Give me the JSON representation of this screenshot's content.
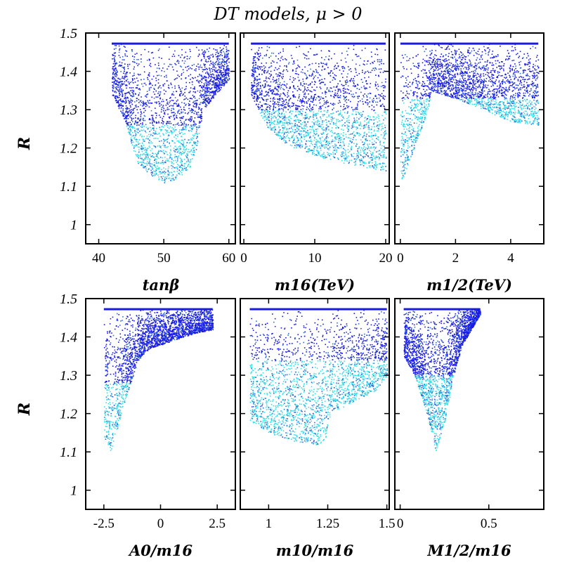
{
  "figure_title": "DT models, μ > 0",
  "colors": {
    "dense": "#1a1ae6",
    "mid": "#2f6fe0",
    "low": "#38e0e8",
    "sparse": "#4040b8"
  },
  "chart_data": [
    {
      "type": "scatter",
      "panel": "tanbeta",
      "xlabel": "tanβ",
      "ylabel": "R",
      "xlim": [
        38,
        61
      ],
      "ylim": [
        0.95,
        1.5
      ],
      "xticks": [
        "40",
        "50",
        "60"
      ],
      "xtick_values": [
        40,
        50,
        60
      ],
      "yticks": [
        "1.5",
        "1.4",
        "1.3",
        "1.2",
        "1.1",
        "1"
      ],
      "ytick_values": [
        1.5,
        1.4,
        1.3,
        1.2,
        1.1,
        1.0
      ],
      "r_max": 1.475,
      "envelope": {
        "x": [
          42,
          44,
          45,
          46,
          48,
          50,
          52,
          54,
          55,
          56,
          58,
          60
        ],
        "r_min": [
          1.34,
          1.27,
          1.21,
          1.16,
          1.13,
          1.11,
          1.12,
          1.15,
          1.2,
          1.3,
          1.34,
          1.38
        ]
      },
      "dense_threshold": 1.26
    },
    {
      "type": "scatter",
      "panel": "m16",
      "xlabel": "m16(TeV)",
      "ylabel": "",
      "xlim": [
        -0.5,
        20.5
      ],
      "ylim": [
        0.95,
        1.5
      ],
      "xticks": [
        "0",
        "10",
        "20"
      ],
      "xtick_values": [
        0,
        10,
        20
      ],
      "yticks": [],
      "ytick_values": [],
      "r_max": 1.475,
      "envelope": {
        "x": [
          1,
          3,
          6,
          10,
          14,
          17,
          20
        ],
        "r_min": [
          1.34,
          1.26,
          1.21,
          1.18,
          1.16,
          1.15,
          1.14
        ]
      },
      "dense_threshold": 1.3
    },
    {
      "type": "scatter",
      "panel": "m12",
      "xlabel": "m1/2(TeV)",
      "ylabel": "",
      "xlim": [
        -0.2,
        5.2
      ],
      "ylim": [
        0.95,
        1.5
      ],
      "xticks": [
        "0",
        "2",
        "4"
      ],
      "xtick_values": [
        0,
        2,
        4
      ],
      "yticks": [],
      "ytick_values": [],
      "r_max": 1.475,
      "envelope": {
        "x": [
          0,
          0.3,
          0.7,
          1.0,
          1.1,
          2,
          3,
          4,
          5
        ],
        "r_min": [
          1.1,
          1.16,
          1.24,
          1.3,
          1.35,
          1.33,
          1.3,
          1.27,
          1.26
        ]
      },
      "dense_threshold": 1.33
    },
    {
      "type": "scatter",
      "panel": "a0",
      "xlabel": "A0/m16",
      "ylabel": "R",
      "xlim": [
        -3.3,
        3.3
      ],
      "ylim": [
        0.95,
        1.5
      ],
      "xticks": [
        "-2.5",
        "0",
        "2.5"
      ],
      "xtick_values": [
        -2.5,
        0,
        2.5
      ],
      "yticks": [
        "1.5",
        "1.4",
        "1.3",
        "1.2",
        "1.1",
        "1"
      ],
      "ytick_values": [
        1.5,
        1.4,
        1.3,
        1.2,
        1.1,
        1.0
      ],
      "r_max": 1.475,
      "envelope": {
        "x": [
          -2.5,
          -2.2,
          -1.6,
          -1.0,
          -0.5,
          0.5,
          1.5,
          2.3
        ],
        "r_min": [
          1.14,
          1.1,
          1.23,
          1.34,
          1.37,
          1.39,
          1.41,
          1.42
        ]
      },
      "dense_threshold": 1.28
    },
    {
      "type": "scatter",
      "panel": "m10",
      "xlabel": "m10/m16",
      "ylabel": "",
      "xlim": [
        0.88,
        1.51
      ],
      "ylim": [
        0.95,
        1.5
      ],
      "xticks": [
        "1",
        "1.25",
        "1.5"
      ],
      "xtick_values": [
        1,
        1.25,
        1.5
      ],
      "yticks": [],
      "ytick_values": [],
      "r_max": 1.475,
      "envelope": {
        "x": [
          0.92,
          1.0,
          1.1,
          1.2,
          1.24,
          1.26,
          1.35,
          1.45,
          1.5
        ],
        "r_min": [
          1.18,
          1.15,
          1.13,
          1.12,
          1.12,
          1.2,
          1.23,
          1.26,
          1.3
        ]
      },
      "dense_threshold": 1.34
    },
    {
      "type": "scatter",
      "panel": "m12ratio",
      "xlabel": "M1/2/m16",
      "ylabel": "",
      "xlim": [
        -0.03,
        0.81
      ],
      "ylim": [
        0.95,
        1.5
      ],
      "xticks": [
        "0",
        "0.5"
      ],
      "xtick_values": [
        0,
        0.5
      ],
      "yticks": [],
      "ytick_values": [],
      "r_max": 1.475,
      "envelope": {
        "x": [
          0.02,
          0.08,
          0.15,
          0.2,
          0.25,
          0.3,
          0.35,
          0.4,
          0.45
        ],
        "r_min": [
          1.35,
          1.3,
          1.2,
          1.1,
          1.18,
          1.3,
          1.38,
          1.42,
          1.46
        ]
      },
      "dense_threshold": 1.3
    }
  ]
}
